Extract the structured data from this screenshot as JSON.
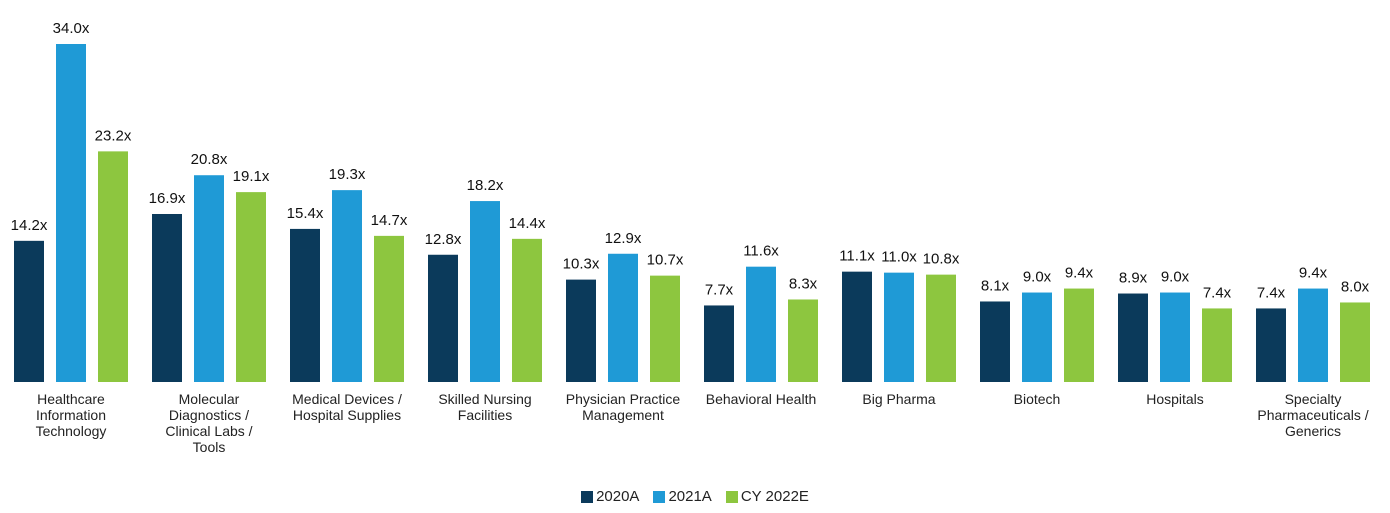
{
  "chart_data": {
    "type": "bar",
    "categories": [
      "Healthcare\nInformation\nTechnology",
      "Molecular\nDiagnostics /\nClinical Labs /\nTools",
      "Medical Devices /\nHospital Supplies",
      "Skilled Nursing\nFacilities",
      "Physician Practice\nManagement",
      "Behavioral Health",
      "Big Pharma",
      "Biotech",
      "Hospitals",
      "Specialty\nPharmaceuticals /\nGenerics"
    ],
    "series": [
      {
        "name": "2020A",
        "color": "#0b3a5b",
        "values": [
          14.2,
          16.9,
          15.4,
          12.8,
          10.3,
          7.7,
          11.1,
          8.1,
          8.9,
          7.4
        ],
        "value_labels": [
          "14.2x",
          "16.9x",
          "15.4x",
          "12.8x",
          "10.3x",
          "7.7x",
          "11.1x",
          "8.1x",
          "8.9x",
          "7.4x"
        ]
      },
      {
        "name": "2021A",
        "color": "#1f9ad6",
        "values": [
          34.0,
          20.8,
          19.3,
          18.2,
          12.9,
          11.6,
          11.0,
          9.0,
          9.0,
          9.4
        ],
        "value_labels": [
          "34.0x",
          "20.8x",
          "19.3x",
          "18.2x",
          "12.9x",
          "11.6x",
          "11.0x",
          "9.0x",
          "9.0x",
          "9.4x"
        ]
      },
      {
        "name": "CY 2022E",
        "color": "#8dc63f",
        "values": [
          23.2,
          19.1,
          14.7,
          14.4,
          10.7,
          8.3,
          10.8,
          9.4,
          7.4,
          8.0
        ],
        "value_labels": [
          "23.2x",
          "19.1x",
          "14.7x",
          "14.4x",
          "10.7x",
          "8.3x",
          "10.8x",
          "9.4x",
          "7.4x",
          "8.0x"
        ]
      }
    ],
    "ylim": [
      0,
      34
    ],
    "legend": "bottom"
  }
}
